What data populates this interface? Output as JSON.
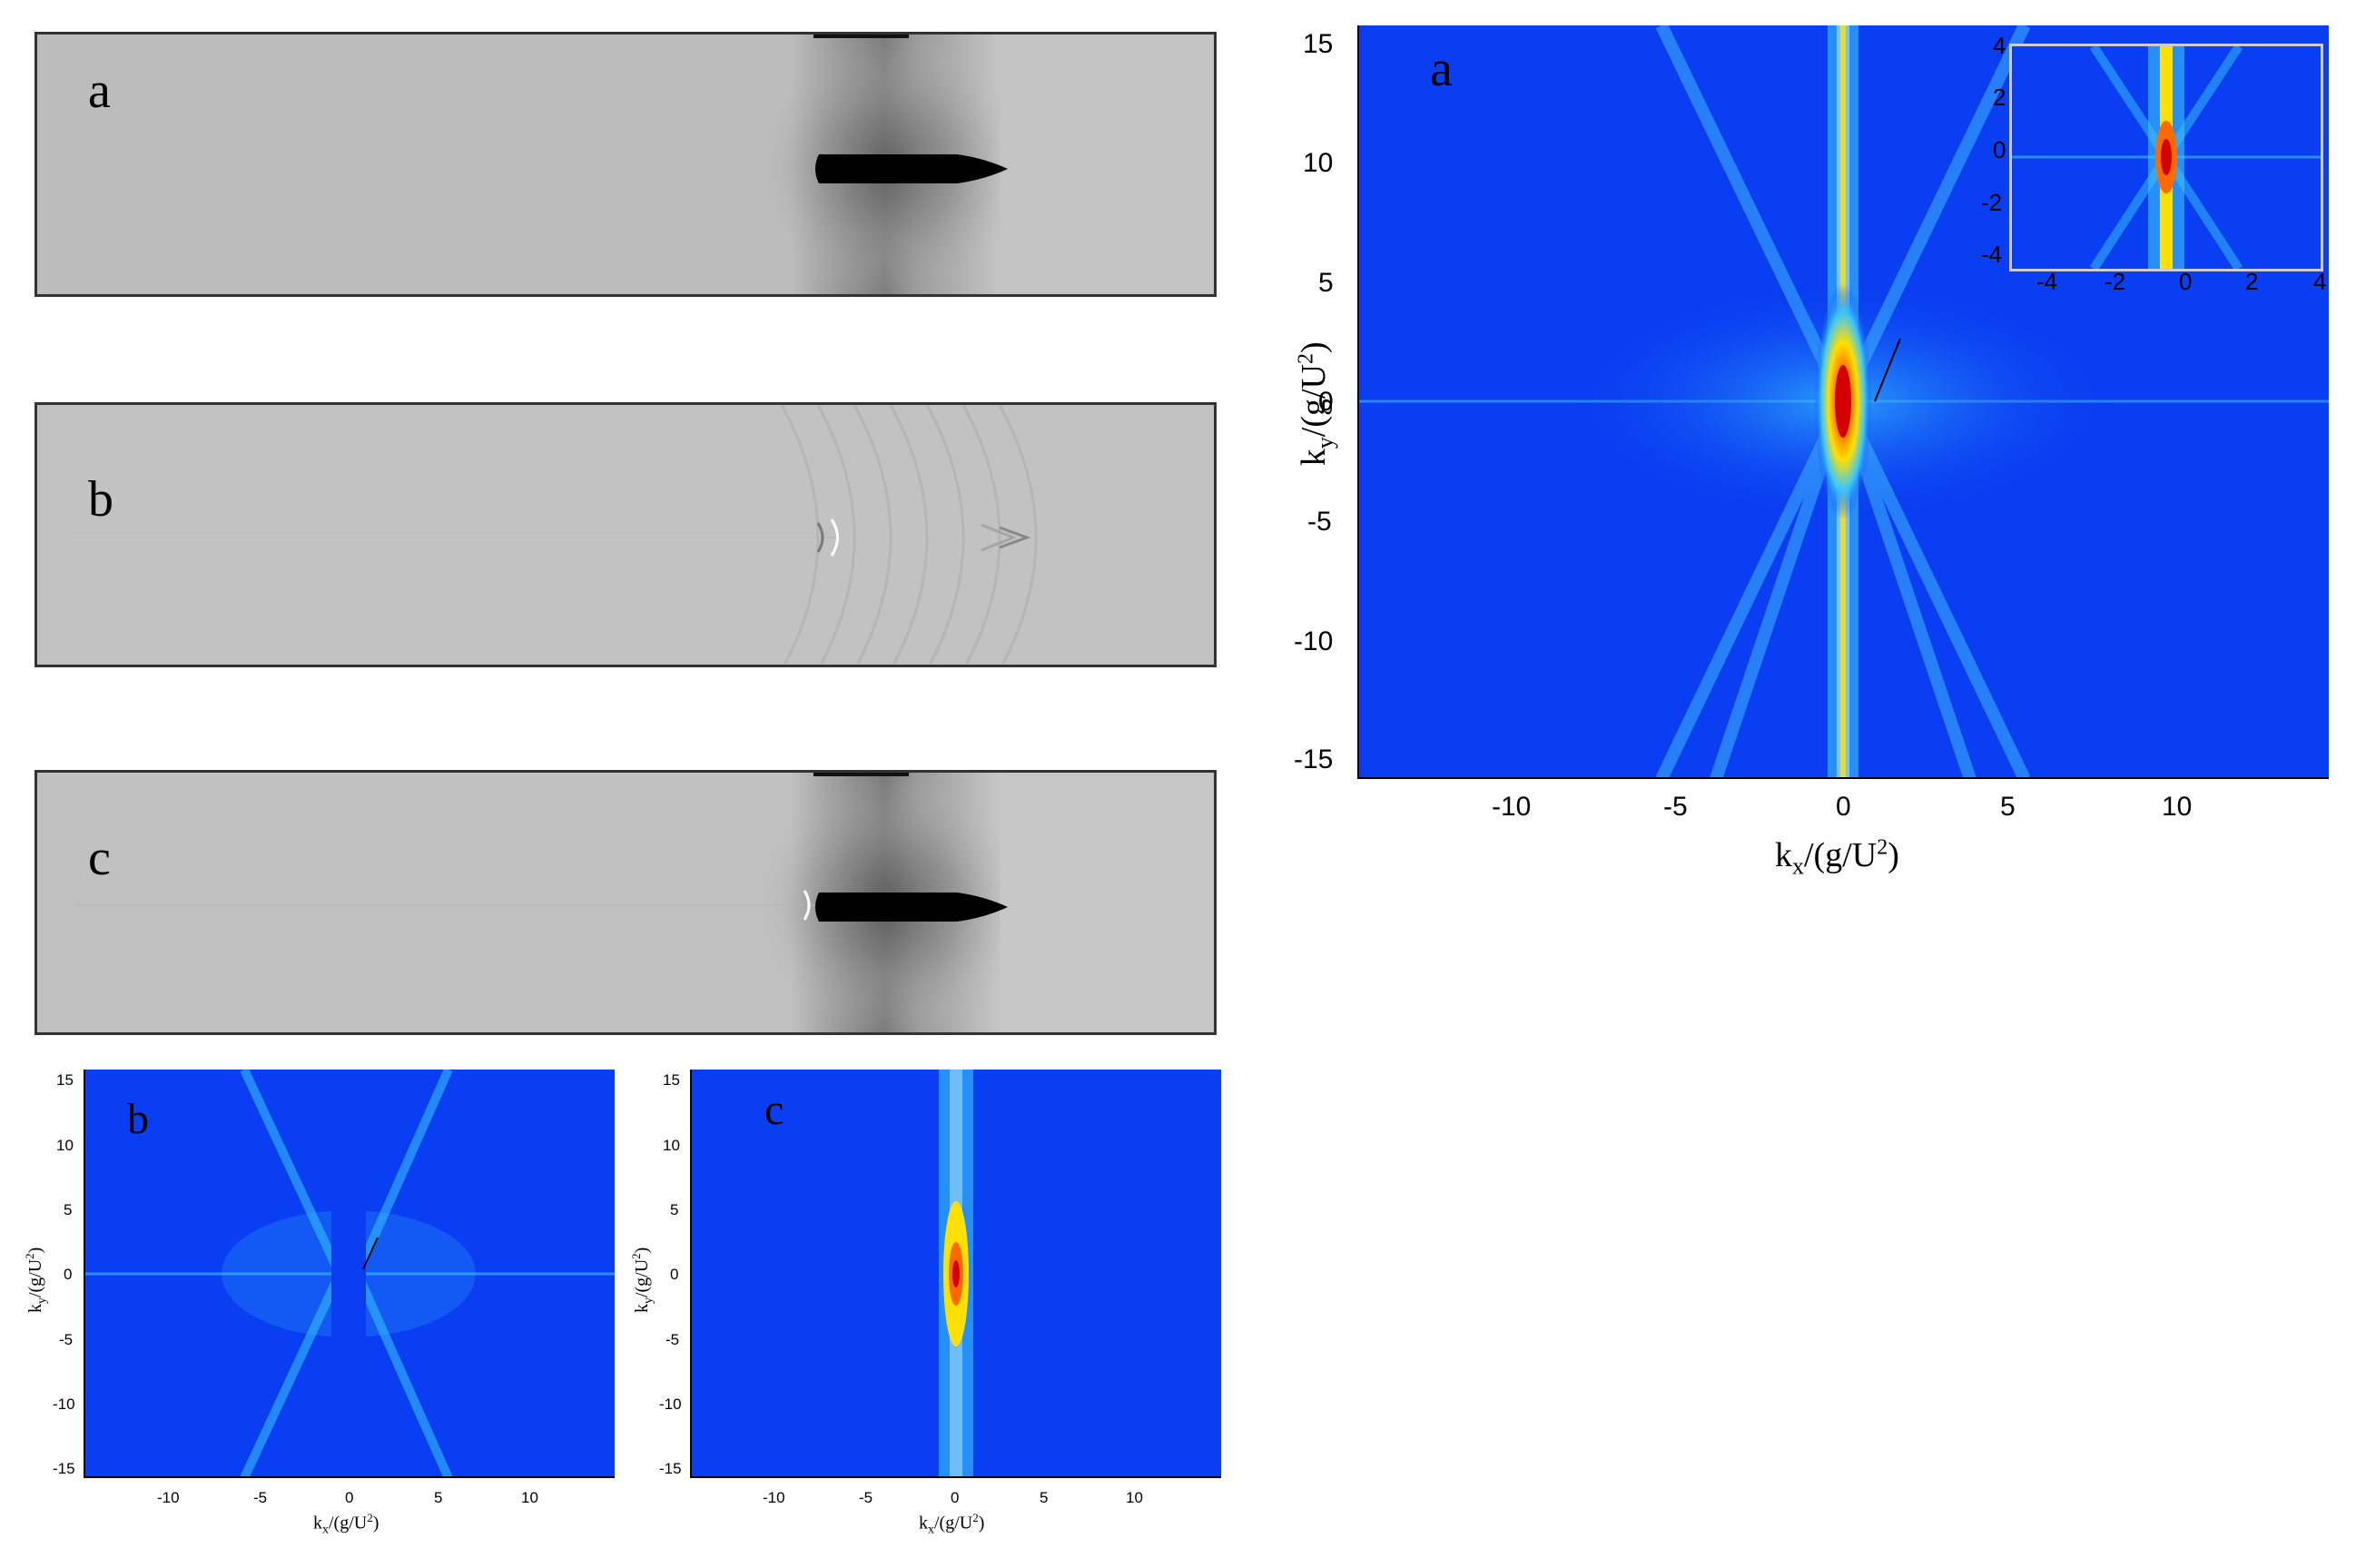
{
  "gray_panels": [
    {
      "letter": "a"
    },
    {
      "letter": "b"
    },
    {
      "letter": "c"
    }
  ],
  "spectrum_main": {
    "letter": "a",
    "xlabel_base": "k",
    "xlabel_sub": "x",
    "xlabel_rest": "/(g/U",
    "xlabel_sup": "2",
    "xlabel_end": ")",
    "ylabel_base": "k",
    "ylabel_sub": "y",
    "ylabel_rest": "/(g/U",
    "ylabel_sup": "2",
    "ylabel_end": ")",
    "xticks": [
      "-10",
      "-5",
      "0",
      "5",
      "10"
    ],
    "yticks": [
      "15",
      "10",
      "5",
      "0",
      "-5",
      "-10",
      "-15"
    ],
    "inset_xticks": [
      "-4",
      "-2",
      "0",
      "2",
      "4"
    ],
    "inset_yticks": [
      "4",
      "2",
      "0",
      "-2",
      "-4"
    ]
  },
  "spectrum_b": {
    "letter": "b",
    "xlabel_base": "k",
    "xlabel_sub": "x",
    "xlabel_rest": "/(g/U",
    "xlabel_sup": "2",
    "xlabel_end": ")",
    "ylabel_base": "k",
    "ylabel_sub": "y",
    "ylabel_rest": "/(g/U",
    "ylabel_sup": "2",
    "ylabel_end": ")",
    "xticks": [
      "-10",
      "-5",
      "0",
      "5",
      "10"
    ],
    "yticks": [
      "15",
      "10",
      "5",
      "0",
      "-5",
      "-10",
      "-15"
    ]
  },
  "spectrum_c": {
    "letter": "c",
    "xlabel_base": "k",
    "xlabel_sub": "x",
    "xlabel_rest": "/(g/U",
    "xlabel_sup": "2",
    "xlabel_end": ")",
    "ylabel_base": "k",
    "ylabel_sub": "y",
    "ylabel_rest": "/(g/U",
    "ylabel_sup": "2",
    "ylabel_end": ")",
    "xticks": [
      "-10",
      "-5",
      "0",
      "5",
      "10"
    ],
    "yticks": [
      "15",
      "10",
      "5",
      "0",
      "-5",
      "-10",
      "-15"
    ]
  },
  "colors": {
    "spectrum_bg": "#0a3ef2",
    "spectrum_mid": "#39c6ff",
    "spectrum_hot": "#ffe000",
    "spectrum_peak": "#d40000",
    "gray_bg": "#bdbdbd",
    "hull": "#000000"
  }
}
